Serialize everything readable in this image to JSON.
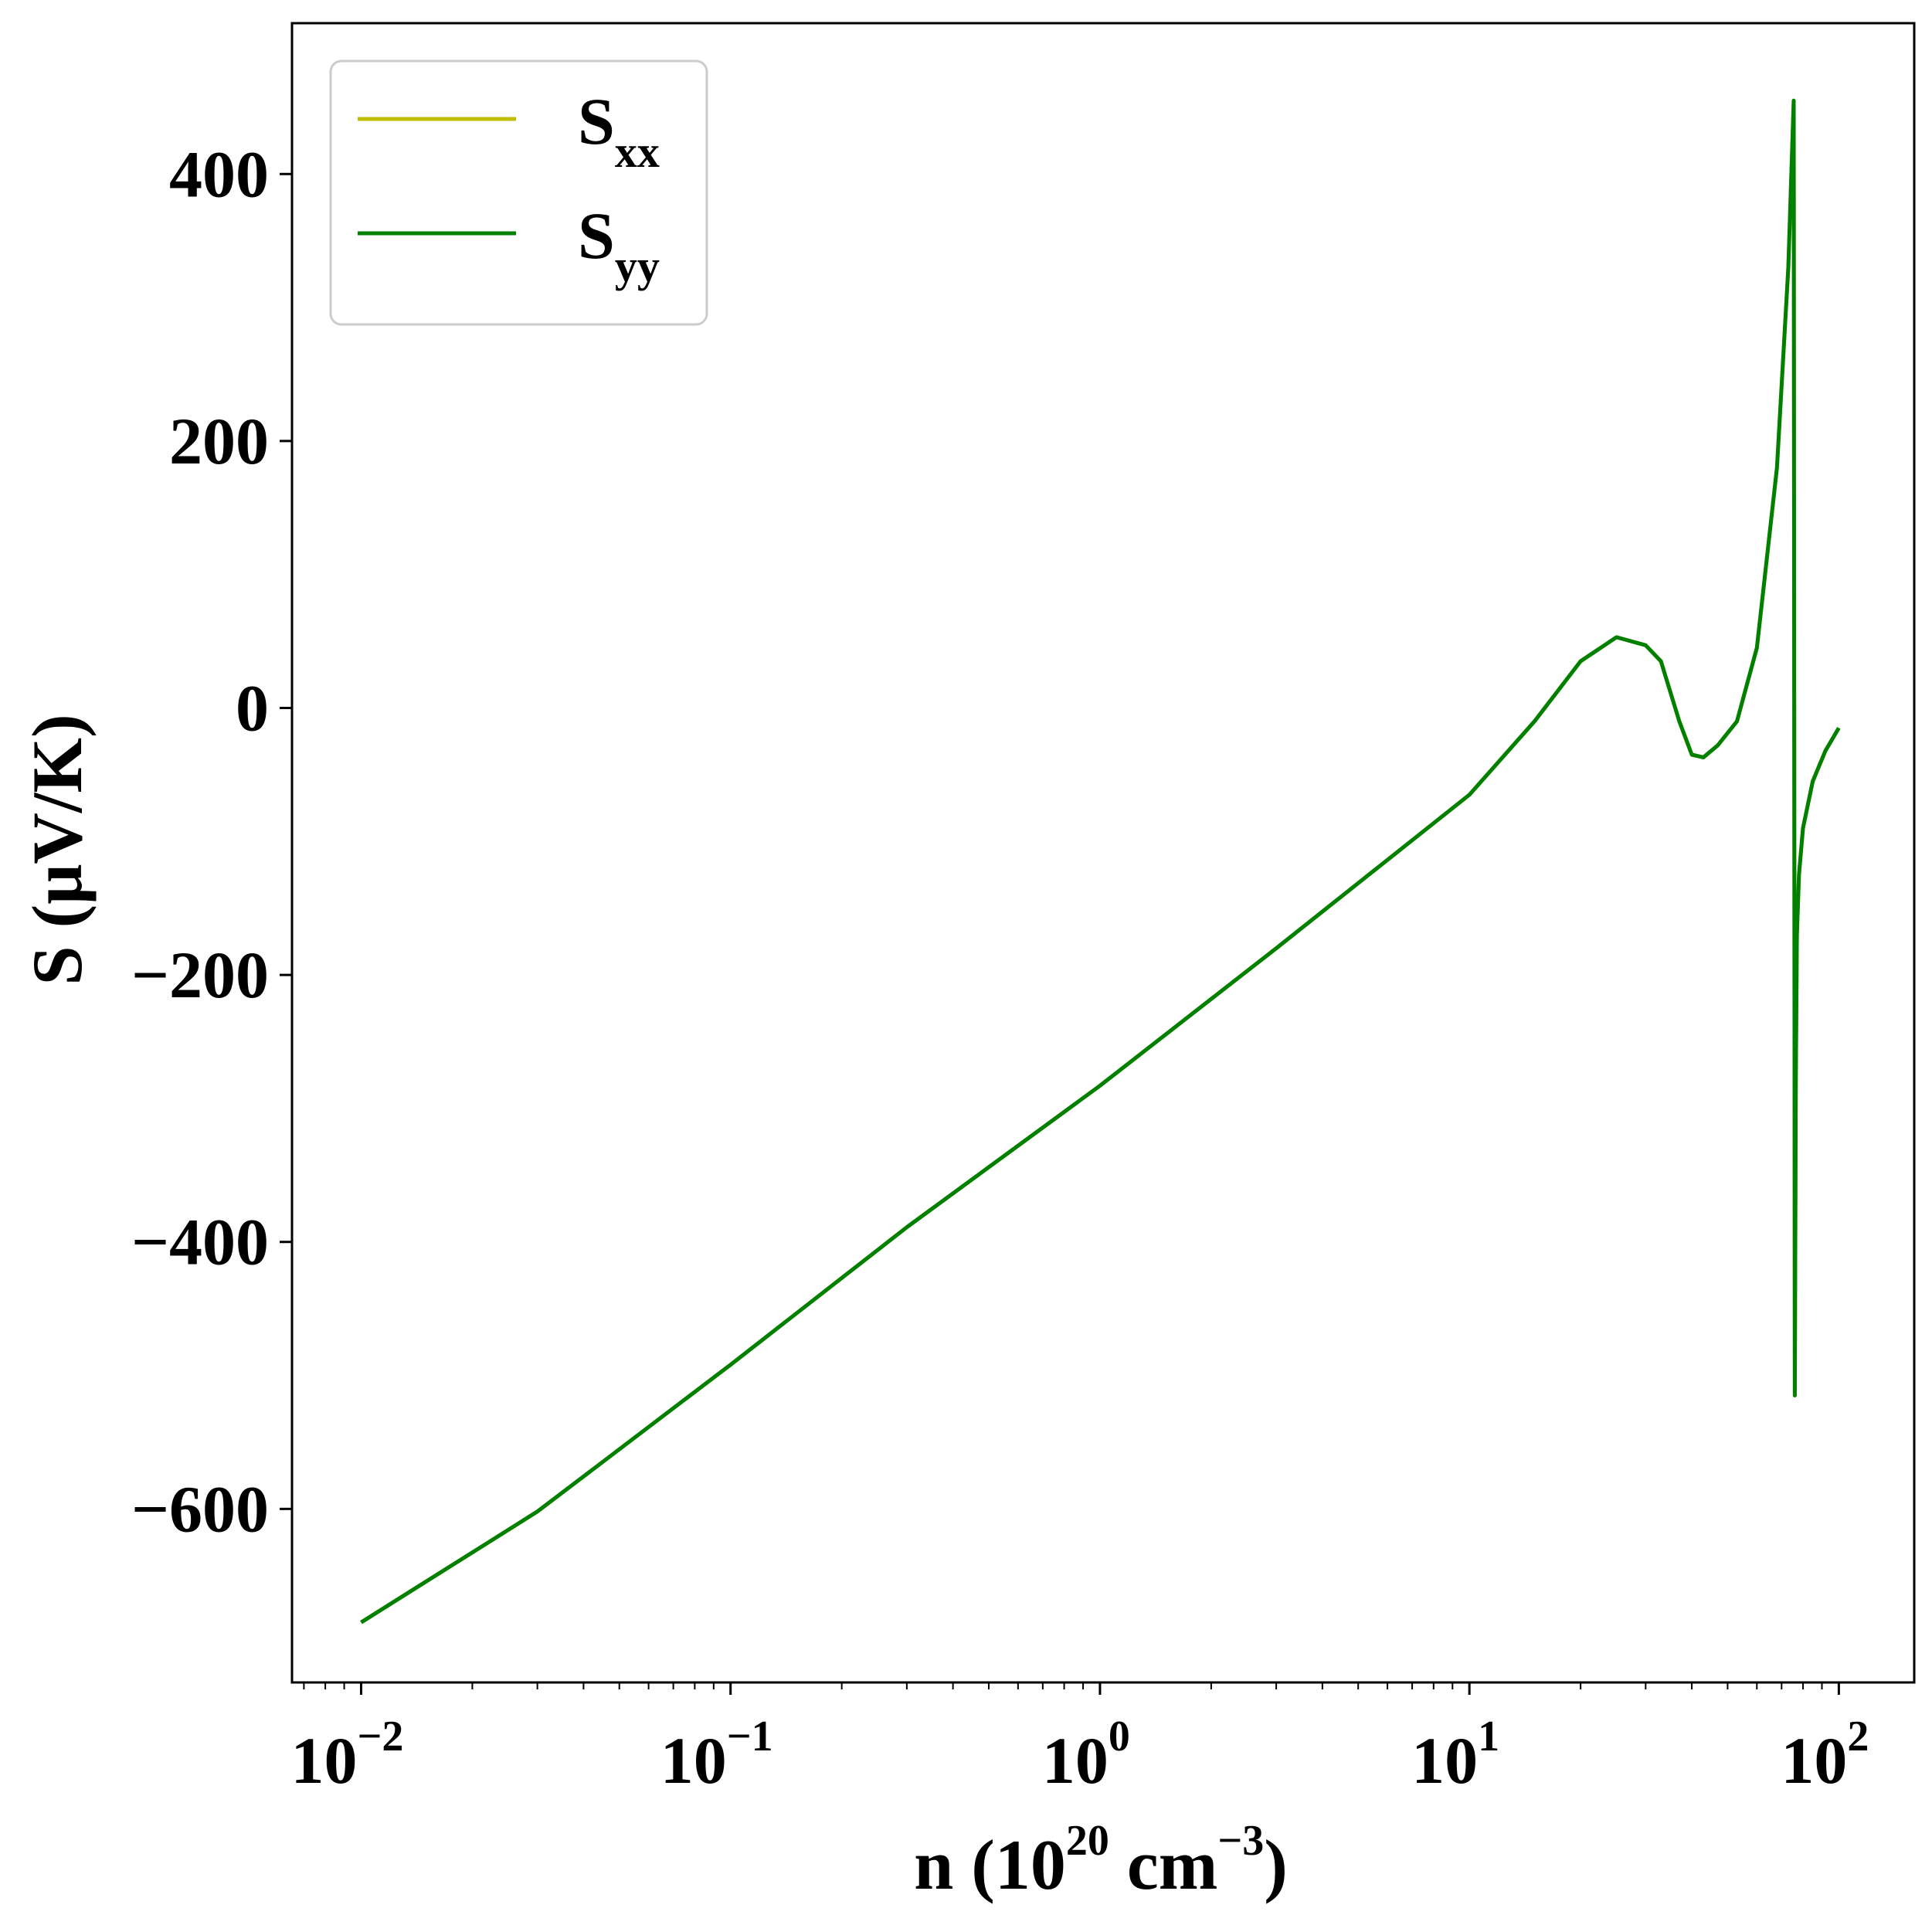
{
  "chart_data": {
    "type": "line",
    "xscale": "log",
    "xlim": [
      0.0065,
      160
    ],
    "ylim": [
      -730,
      513
    ],
    "grid": false,
    "legend_position": "top-left",
    "xlabel": {
      "prefix": "n (10",
      "sup1": "20",
      "mid": " cm",
      "sup2": "−3",
      "suffix": ")"
    },
    "ylabel": "S (μV/K)",
    "xticks": [
      {
        "value": 0.01,
        "base": "10",
        "exp": "−2"
      },
      {
        "value": 0.1,
        "base": "10",
        "exp": "−1"
      },
      {
        "value": 1,
        "base": "10",
        "exp": "0"
      },
      {
        "value": 10,
        "base": "10",
        "exp": "1"
      },
      {
        "value": 100,
        "base": "10",
        "exp": "2"
      }
    ],
    "yticks": [
      {
        "value": 400,
        "label": "400"
      },
      {
        "value": 200,
        "label": "200"
      },
      {
        "value": 0,
        "label": "0"
      },
      {
        "value": -200,
        "label": "−200"
      },
      {
        "value": -400,
        "label": "−400"
      },
      {
        "value": -600,
        "label": "−600"
      }
    ],
    "series": [
      {
        "name": "S",
        "name_sub": "xx",
        "color": "#bfbf00",
        "x": [
          0.01,
          0.03,
          0.1,
          0.3,
          1,
          3,
          10,
          15,
          20,
          25,
          30,
          33,
          37,
          40,
          43,
          47,
          53,
          60,
          68,
          73,
          75.5,
          76,
          76.5,
          77,
          78,
          80,
          85,
          92,
          100
        ],
        "y": [
          -685,
          -602,
          -492,
          -389,
          -283,
          -180,
          -65,
          -10,
          35,
          53,
          47,
          35,
          -10,
          -35,
          -37,
          -28,
          -10,
          45,
          180,
          330,
          455,
          -515,
          -280,
          -170,
          -125,
          -90,
          -55,
          -32,
          -15
        ]
      },
      {
        "name": "S",
        "name_sub": "yy",
        "color": "#008000",
        "x": [
          0.01,
          0.03,
          0.1,
          0.3,
          1,
          3,
          10,
          15,
          20,
          25,
          30,
          33,
          37,
          40,
          43,
          47,
          53,
          60,
          68,
          73,
          75.5,
          76,
          76.5,
          77,
          78,
          80,
          85,
          92,
          100
        ],
        "y": [
          -685,
          -602,
          -492,
          -389,
          -283,
          -180,
          -65,
          -10,
          35,
          53,
          47,
          35,
          -10,
          -35,
          -37,
          -28,
          -10,
          45,
          180,
          330,
          455,
          -515,
          -280,
          -170,
          -125,
          -90,
          -55,
          -32,
          -15
        ]
      }
    ]
  }
}
